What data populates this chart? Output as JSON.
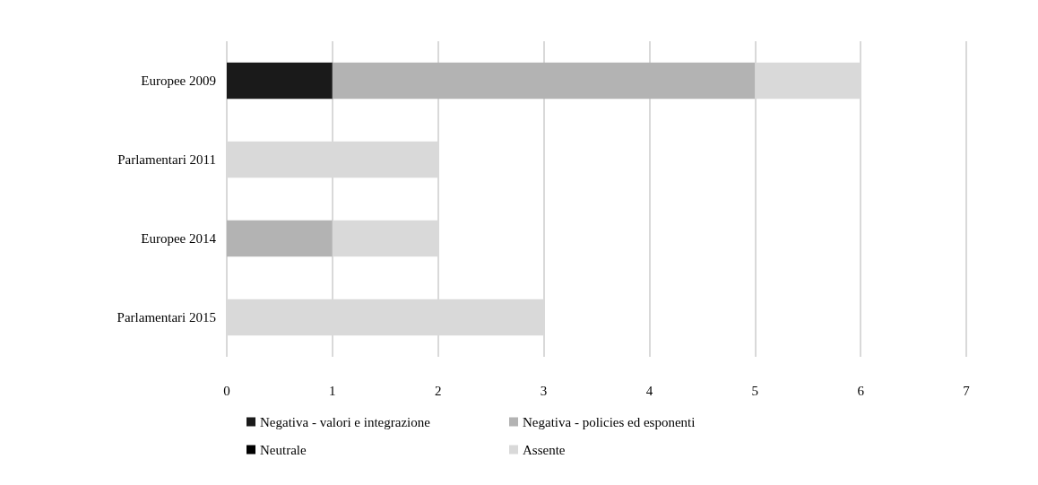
{
  "chart_data": {
    "type": "bar",
    "orientation": "horizontal",
    "stacked": true,
    "categories": [
      "Europee 2009",
      "Parlamentari 2011",
      "Europee 2014",
      "Parlamentari 2015"
    ],
    "series": [
      {
        "name": "Negativa - valori e integrazione",
        "color": "#1a1a1a",
        "values": [
          1,
          0,
          0,
          0
        ]
      },
      {
        "name": "Negativa - policies ed esponenti",
        "color": "#b3b3b3",
        "values": [
          4,
          0,
          1,
          0
        ]
      },
      {
        "name": "Neutrale",
        "color": "#000000",
        "values": [
          0,
          0,
          0,
          0
        ]
      },
      {
        "name": "Assente",
        "color": "#d9d9d9",
        "values": [
          1,
          2,
          1,
          3
        ]
      }
    ],
    "xlim": [
      0,
      7
    ],
    "xticks": [
      0,
      1,
      2,
      3,
      4,
      5,
      6,
      7
    ],
    "grid": "x",
    "legend": "bottom"
  }
}
